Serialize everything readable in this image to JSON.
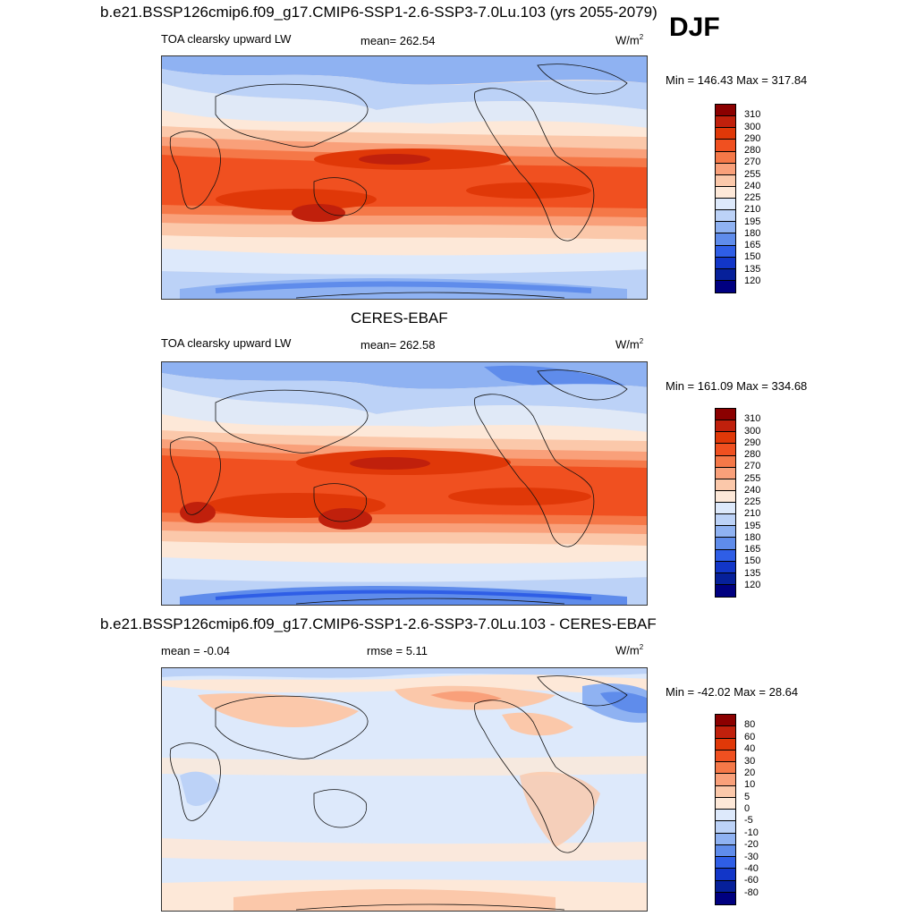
{
  "header": {
    "title": "b.e21.BSSP126cmip6.f09_g17.CMIP6-SSP1-2.6-SSP3-7.0Lu.103 (yrs 2055-2079)",
    "season": "DJF"
  },
  "panels": [
    {
      "title": "",
      "left": "TOA clearsky upward LW",
      "center": "mean= 262.54",
      "units_base": "W/m",
      "units_exp": "2",
      "minmax": "Min = 146.43 Max = 317.84",
      "scale": "abs"
    },
    {
      "title": "CERES-EBAF",
      "left": "TOA clearsky upward LW",
      "center": "mean= 262.58",
      "units_base": "W/m",
      "units_exp": "2",
      "minmax": "Min = 161.09 Max = 334.68",
      "scale": "abs"
    },
    {
      "title": "b.e21.BSSP126cmip6.f09_g17.CMIP6-SSP1-2.6-SSP3-7.0Lu.103 - CERES-EBAF",
      "left": "mean =  -0.04",
      "center": "rmse =   5.11",
      "units_base": "W/m",
      "units_exp": "2",
      "minmax": "Min = -42.02 Max =  28.64",
      "scale": "diff"
    }
  ],
  "colorbars": {
    "abs": {
      "levels": [
        "310",
        "300",
        "290",
        "280",
        "270",
        "255",
        "240",
        "225",
        "210",
        "195",
        "180",
        "165",
        "150",
        "135",
        "120"
      ],
      "colors": [
        "#8b0000",
        "#c0200c",
        "#e03808",
        "#f05020",
        "#f57848",
        "#f9a07a",
        "#fbc8aa",
        "#fde8d8",
        "#dde9fb",
        "#bcd2f7",
        "#8fb2f2",
        "#5f8ceb",
        "#2f5ee6",
        "#1236c8",
        "#06209a",
        "#000080"
      ]
    },
    "diff": {
      "levels": [
        "80",
        "60",
        "40",
        "30",
        "20",
        "10",
        "5",
        "0",
        "-5",
        "-10",
        "-20",
        "-30",
        "-40",
        "-60",
        "-80"
      ],
      "colors": [
        "#8b0000",
        "#c0200c",
        "#e03808",
        "#f05020",
        "#f57848",
        "#f9a07a",
        "#fbc8aa",
        "#fde8d8",
        "#dde9fb",
        "#bcd2f7",
        "#8fb2f2",
        "#5f8ceb",
        "#2f5ee6",
        "#1236c8",
        "#06209a",
        "#000080"
      ]
    }
  },
  "chart_data": [
    {
      "type": "heatmap",
      "title": "",
      "variable": "TOA clearsky upward LW",
      "units": "W/m2",
      "mean": 262.54,
      "min": 146.43,
      "max": 317.84,
      "contour_levels": [
        120,
        135,
        150,
        165,
        180,
        195,
        210,
        225,
        240,
        255,
        270,
        280,
        290,
        300,
        310
      ],
      "season": "DJF"
    },
    {
      "type": "heatmap",
      "title": "CERES-EBAF",
      "variable": "TOA clearsky upward LW",
      "units": "W/m2",
      "mean": 262.58,
      "min": 161.09,
      "max": 334.68,
      "contour_levels": [
        120,
        135,
        150,
        165,
        180,
        195,
        210,
        225,
        240,
        255,
        270,
        280,
        290,
        300,
        310
      ],
      "season": "DJF"
    },
    {
      "type": "heatmap",
      "title": "b.e21.BSSP126cmip6.f09_g17.CMIP6-SSP1-2.6-SSP3-7.0Lu.103 - CERES-EBAF",
      "units": "W/m2",
      "mean": -0.04,
      "rmse": 5.11,
      "min": -42.02,
      "max": 28.64,
      "contour_levels": [
        -80,
        -60,
        -40,
        -30,
        -20,
        -10,
        -5,
        0,
        5,
        10,
        20,
        30,
        40,
        60,
        80
      ],
      "season": "DJF"
    }
  ]
}
